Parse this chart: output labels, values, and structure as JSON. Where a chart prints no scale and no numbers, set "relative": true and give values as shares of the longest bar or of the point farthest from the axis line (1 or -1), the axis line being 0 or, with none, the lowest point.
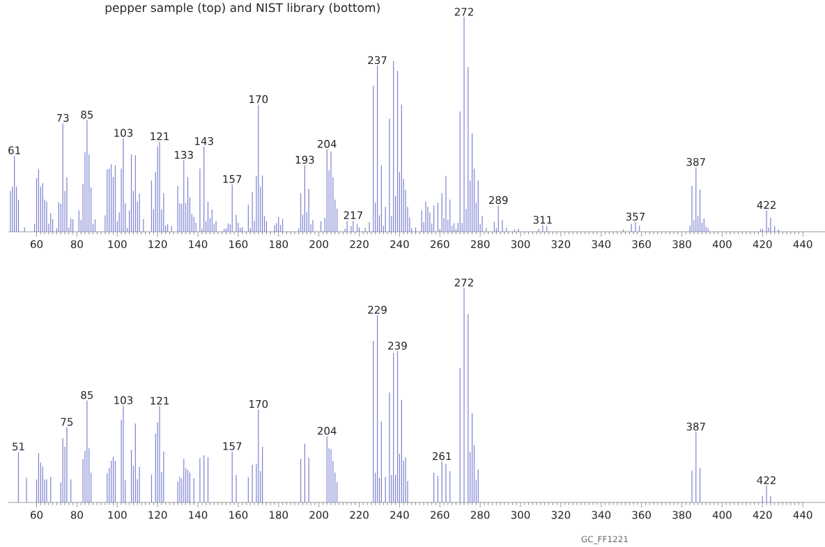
{
  "chart_data": [
    {
      "type": "bar",
      "title": "pepper sample (top) and NIST library (bottom)",
      "relative": true,
      "color": "#7b80d2",
      "xlim": [
        46,
        451
      ],
      "xticks": [
        60,
        80,
        100,
        120,
        140,
        160,
        180,
        200,
        220,
        240,
        260,
        280,
        300,
        320,
        340,
        360,
        380,
        400,
        420,
        440
      ],
      "x": [
        47,
        48,
        49,
        50,
        51,
        54,
        59,
        60,
        61,
        62,
        63,
        64,
        65,
        66,
        67,
        68,
        70,
        71,
        72,
        73,
        74,
        75,
        76,
        77,
        78,
        81,
        82,
        83,
        84,
        85,
        86,
        87,
        88,
        89,
        94,
        95,
        96,
        97,
        98,
        99,
        100,
        101,
        102,
        103,
        104,
        105,
        106,
        107,
        108,
        109,
        110,
        111,
        113,
        117,
        118,
        119,
        120,
        121,
        122,
        123,
        124,
        125,
        127,
        130,
        131,
        132,
        133,
        134,
        135,
        136,
        137,
        138,
        139,
        141,
        142,
        143,
        144,
        145,
        146,
        147,
        148,
        149,
        153,
        154,
        155,
        156,
        157,
        159,
        160,
        161,
        162,
        165,
        166,
        167,
        168,
        169,
        170,
        171,
        172,
        173,
        174,
        178,
        179,
        180,
        181,
        182,
        190,
        191,
        192,
        193,
        194,
        195,
        196,
        197,
        201,
        203,
        204,
        205,
        206,
        207,
        208,
        209,
        213,
        214,
        216,
        217,
        219,
        220,
        223,
        225,
        227,
        228,
        229,
        230,
        231,
        232,
        233,
        235,
        236,
        237,
        238,
        239,
        240,
        241,
        242,
        243,
        244,
        245,
        246,
        248,
        251,
        252,
        253,
        254,
        255,
        256,
        257,
        259,
        260,
        261,
        262,
        263,
        264,
        265,
        266,
        267,
        268,
        269,
        270,
        271,
        272,
        273,
        274,
        275,
        276,
        277,
        278,
        279,
        280,
        281,
        283,
        287,
        288,
        289,
        291,
        293,
        297,
        299,
        309,
        311,
        313,
        351,
        355,
        357,
        359,
        384,
        385,
        386,
        387,
        388,
        389,
        390,
        391,
        392,
        393,
        419,
        420,
        422,
        423,
        424,
        426,
        428
      ],
      "values": [
        0.19,
        0.21,
        0.354,
        0.21,
        0.15,
        0.02,
        0.037,
        0.25,
        0.29,
        0.21,
        0.226,
        0.15,
        0.14,
        0.037,
        0.087,
        0.058,
        0.016,
        0.137,
        0.13,
        0.505,
        0.19,
        0.254,
        0.02,
        0.062,
        0.058,
        0.1,
        0.055,
        0.224,
        0.37,
        0.52,
        0.36,
        0.206,
        0.037,
        0.058,
        0.076,
        0.29,
        0.294,
        0.314,
        0.255,
        0.31,
        0.05,
        0.09,
        0.294,
        0.435,
        0.132,
        0.018,
        0.1,
        0.36,
        0.19,
        0.357,
        0.14,
        0.177,
        0.058,
        0.238,
        0.105,
        0.277,
        0.397,
        0.42,
        0.104,
        0.18,
        0.028,
        0.035,
        0.026,
        0.212,
        0.134,
        0.13,
        0.333,
        0.134,
        0.255,
        0.16,
        0.083,
        0.07,
        0.042,
        0.294,
        0.015,
        0.397,
        0.049,
        0.14,
        0.063,
        0.104,
        0.037,
        0.05,
        0.013,
        0.016,
        0.039,
        0.034,
        0.22,
        0.079,
        0.042,
        0.018,
        0.022,
        0.126,
        0.016,
        0.186,
        0.05,
        0.26,
        0.592,
        0.21,
        0.262,
        0.073,
        0.05,
        0.03,
        0.04,
        0.068,
        0.032,
        0.06,
        0.016,
        0.18,
        0.08,
        0.31,
        0.09,
        0.2,
        0.035,
        0.054,
        0.049,
        0.065,
        0.384,
        0.287,
        0.373,
        0.254,
        0.15,
        0.108,
        0.013,
        0.05,
        0.027,
        0.052,
        0.035,
        0.02,
        0.018,
        0.045,
        0.68,
        0.135,
        0.774,
        0.076,
        0.31,
        0.027,
        0.116,
        0.527,
        0.073,
        0.795,
        0.165,
        0.75,
        0.278,
        0.592,
        0.246,
        0.195,
        0.116,
        0.067,
        0.016,
        0.02,
        0.1,
        0.045,
        0.14,
        0.116,
        0.09,
        0.038,
        0.122,
        0.135,
        0.013,
        0.18,
        0.063,
        0.26,
        0.056,
        0.15,
        0.027,
        0.04,
        0.013,
        0.041,
        0.56,
        0.04,
        1.0,
        0.106,
        0.768,
        0.238,
        0.458,
        0.294,
        0.135,
        0.238,
        0.036,
        0.074,
        0.018,
        0.047,
        0.016,
        0.122,
        0.054,
        0.018,
        0.011,
        0.014,
        0.014,
        0.03,
        0.026,
        0.011,
        0.037,
        0.045,
        0.028,
        0.028,
        0.214,
        0.054,
        0.3,
        0.074,
        0.197,
        0.043,
        0.062,
        0.024,
        0.017,
        0.011,
        0.015,
        0.1,
        0.019,
        0.065,
        0.026,
        0.011
      ],
      "annotations": [
        {
          "text": "61",
          "x": 49,
          "y": 0.354
        },
        {
          "text": "73",
          "x": 73,
          "y": 0.505
        },
        {
          "text": "85",
          "x": 85,
          "y": 0.52
        },
        {
          "text": "103",
          "x": 103,
          "y": 0.435
        },
        {
          "text": "121",
          "x": 121,
          "y": 0.42
        },
        {
          "text": "133",
          "x": 133,
          "y": 0.333
        },
        {
          "text": "143",
          "x": 143,
          "y": 0.397
        },
        {
          "text": "157",
          "x": 157,
          "y": 0.22
        },
        {
          "text": "170",
          "x": 170,
          "y": 0.592
        },
        {
          "text": "193",
          "x": 193,
          "y": 0.31
        },
        {
          "text": "204",
          "x": 204,
          "y": 0.384
        },
        {
          "text": "217",
          "x": 217,
          "y": 0.052
        },
        {
          "text": "237",
          "x": 229,
          "y": 0.774
        },
        {
          "text": "272",
          "x": 272,
          "y": 1.0
        },
        {
          "text": "289",
          "x": 289,
          "y": 0.122
        },
        {
          "text": "311",
          "x": 311,
          "y": 0.03
        },
        {
          "text": "357",
          "x": 357,
          "y": 0.045
        },
        {
          "text": "387",
          "x": 387,
          "y": 0.3
        },
        {
          "text": "422",
          "x": 422,
          "y": 0.1
        }
      ]
    },
    {
      "type": "bar",
      "relative": true,
      "color": "#7b80d2",
      "xlim": [
        46,
        451
      ],
      "xticks": [
        60,
        80,
        100,
        120,
        140,
        160,
        180,
        200,
        220,
        240,
        260,
        280,
        300,
        320,
        340,
        360,
        380,
        400,
        420,
        440
      ],
      "x": [
        51,
        55,
        60,
        61,
        62,
        63,
        64,
        65,
        67,
        72,
        73,
        74,
        75,
        77,
        83,
        84,
        85,
        86,
        87,
        95,
        96,
        97,
        98,
        99,
        102,
        103,
        104,
        107,
        108,
        109,
        110,
        111,
        117,
        119,
        120,
        121,
        122,
        123,
        130,
        131,
        132,
        133,
        134,
        135,
        136,
        138,
        141,
        143,
        145,
        157,
        159,
        165,
        167,
        169,
        170,
        171,
        172,
        191,
        193,
        195,
        204,
        205,
        206,
        207,
        208,
        209,
        227,
        228,
        229,
        230,
        231,
        233,
        235,
        236,
        237,
        238,
        239,
        240,
        241,
        242,
        243,
        244,
        257,
        259,
        261,
        263,
        265,
        270,
        272,
        274,
        275,
        276,
        277,
        278,
        279,
        385,
        387,
        389,
        420,
        422,
        424
      ],
      "values": [
        0.235,
        0.116,
        0.107,
        0.23,
        0.186,
        0.168,
        0.108,
        0.107,
        0.12,
        0.094,
        0.3,
        0.259,
        0.35,
        0.108,
        0.202,
        0.24,
        0.475,
        0.252,
        0.139,
        0.135,
        0.16,
        0.194,
        0.213,
        0.194,
        0.385,
        0.451,
        0.103,
        0.245,
        0.171,
        0.368,
        0.109,
        0.166,
        0.13,
        0.32,
        0.374,
        0.449,
        0.142,
        0.238,
        0.097,
        0.119,
        0.111,
        0.203,
        0.16,
        0.152,
        0.139,
        0.113,
        0.207,
        0.22,
        0.211,
        0.237,
        0.128,
        0.117,
        0.175,
        0.18,
        0.433,
        0.146,
        0.259,
        0.203,
        0.274,
        0.208,
        0.308,
        0.253,
        0.247,
        0.193,
        0.139,
        0.095,
        0.753,
        0.139,
        0.872,
        0.114,
        0.376,
        0.119,
        0.512,
        0.128,
        0.696,
        0.13,
        0.705,
        0.227,
        0.478,
        0.195,
        0.211,
        0.1,
        0.139,
        0.124,
        0.19,
        0.18,
        0.146,
        0.627,
        1.0,
        0.877,
        0.235,
        0.416,
        0.267,
        0.106,
        0.154,
        0.148,
        0.328,
        0.16,
        0.029,
        0.079,
        0.029
      ],
      "annotations": [
        {
          "text": "51",
          "x": 51,
          "y": 0.235
        },
        {
          "text": "75",
          "x": 75,
          "y": 0.35
        },
        {
          "text": "85",
          "x": 85,
          "y": 0.475
        },
        {
          "text": "103",
          "x": 103,
          "y": 0.451
        },
        {
          "text": "121",
          "x": 121,
          "y": 0.449
        },
        {
          "text": "157",
          "x": 157,
          "y": 0.237
        },
        {
          "text": "170",
          "x": 170,
          "y": 0.433
        },
        {
          "text": "204",
          "x": 204,
          "y": 0.308
        },
        {
          "text": "229",
          "x": 229,
          "y": 0.872
        },
        {
          "text": "239",
          "x": 239,
          "y": 0.705
        },
        {
          "text": "261",
          "x": 261,
          "y": 0.19
        },
        {
          "text": "272",
          "x": 272,
          "y": 1.0
        },
        {
          "text": "387",
          "x": 387,
          "y": 0.328
        },
        {
          "text": "422",
          "x": 422,
          "y": 0.079
        },
        "GC_FF1221"
      ]
    }
  ]
}
